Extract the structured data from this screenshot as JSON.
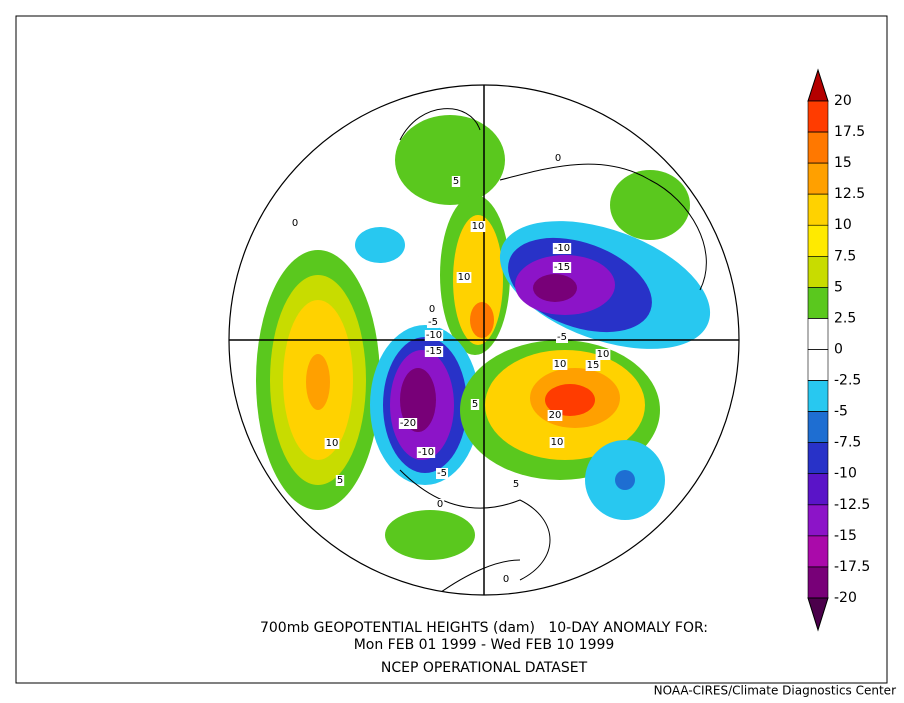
{
  "map": {
    "caption": [
      "700mb GEOPOTENTIAL HEIGHTS (dam)   10-DAY ANOMALY FOR:",
      "Mon FEB 01 1999 - Wed FEB 10 1999",
      "NCEP OPERATIONAL DATASET"
    ],
    "credit": "NOAA-CIRES/Climate Diagnostics Center",
    "colorbar": {
      "levels": [
        20,
        17.5,
        15,
        12.5,
        10,
        7.5,
        5,
        2.5,
        0,
        -2.5,
        -5,
        -7.5,
        -10,
        -12.5,
        -15,
        -17.5,
        -20
      ],
      "colors": [
        "#b40000",
        "#ff3c00",
        "#ff7800",
        "#ffa000",
        "#ffd200",
        "#ffea00",
        "#c8dc00",
        "#5ac81e",
        "#ffffff",
        "#ffffff",
        "#28c8f0",
        "#1e6ed2",
        "#2832c8",
        "#5a14c8",
        "#8c14c8",
        "#aa0aaa",
        "#780078",
        "#4b004b"
      ]
    },
    "contour_labels": [
      "5",
      "10",
      "10",
      "0",
      "-5",
      "-10",
      "-15",
      "-20",
      "-10",
      "-5",
      "0",
      "10",
      "5",
      "-10",
      "-15",
      "-5",
      "10",
      "15",
      "20",
      "10",
      "5",
      "0",
      "0",
      "0",
      "5",
      "10"
    ]
  }
}
